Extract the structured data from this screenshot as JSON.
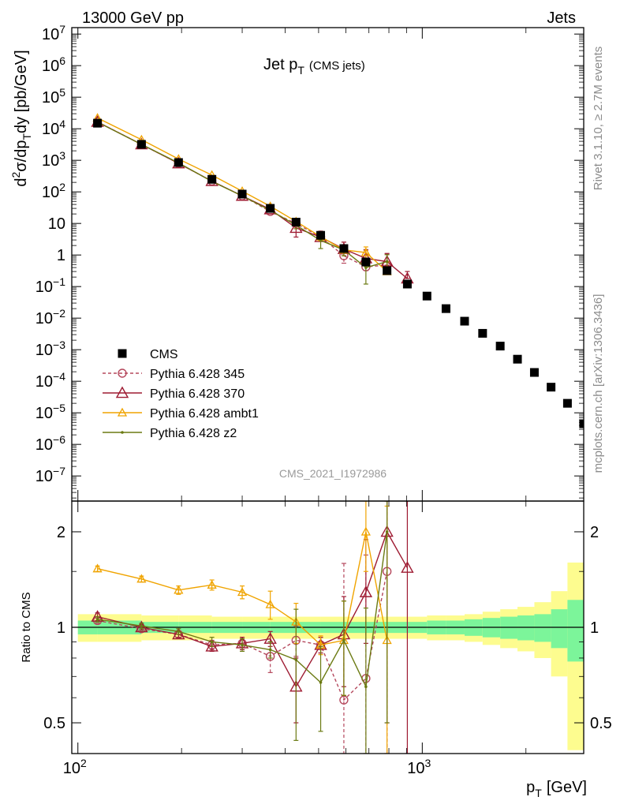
{
  "header": {
    "left": "13000 GeV pp",
    "right": "Jets"
  },
  "plot_title": {
    "main": "Jet p",
    "sub": "T",
    "suffix": "(CMS jets)"
  },
  "watermark": "CMS_2021_I1972986",
  "side_labels": {
    "top": "Rivet 3.1.10, ≥ 2.7M events",
    "bottom": "mcplots.cern.ch [arXiv:1306.3436]"
  },
  "axes": {
    "upper_ylabel": {
      "part1": "d",
      "sup1": "2",
      "part2": "σ/dp",
      "sub1": "T",
      "part3": "dy [pb/GeV]"
    },
    "lower_ylabel": "Ratio to CMS",
    "xlabel": {
      "main": "p",
      "sub": "T",
      "unit": "[GeV]"
    }
  },
  "colors": {
    "data": "#000000",
    "p345": "#b5485d",
    "p370": "#9e1b32",
    "ambt1": "#f0a400",
    "z2": "#6b7a12",
    "band_inner": "#7cf59a",
    "band_outer": "#fdfc8f"
  },
  "chart_data": {
    "type": "scatter",
    "x_scale": "log",
    "xlim": [
      96,
      900
    ],
    "x_ticks": [
      {
        "value": 100,
        "label": "10",
        "sup": "2"
      },
      {
        "value": 1000,
        "label": "10",
        "sup": "3"
      }
    ],
    "upper": {
      "y_scale": "log",
      "ylim": [
        1.6e-08,
        16000000.0
      ],
      "y_ticks": [
        {
          "value": 10000000.0,
          "label": "10",
          "sup": "7"
        },
        {
          "value": 1000000.0,
          "label": "10",
          "sup": "6"
        },
        {
          "value": 100000.0,
          "label": "10",
          "sup": "5"
        },
        {
          "value": 10000.0,
          "label": "10",
          "sup": "4"
        },
        {
          "value": 1000.0,
          "label": "10",
          "sup": "3"
        },
        {
          "value": 100.0,
          "label": "10",
          "sup": "2"
        },
        {
          "value": 10,
          "label": "10",
          "sup": ""
        },
        {
          "value": 1,
          "label": "1",
          "sup": ""
        },
        {
          "value": 0.1,
          "label": "10",
          "sup": "−1"
        },
        {
          "value": 0.01,
          "label": "10",
          "sup": "−2"
        },
        {
          "value": 0.001,
          "label": "10",
          "sup": "−3"
        },
        {
          "value": 0.0001,
          "label": "10",
          "sup": "−4"
        },
        {
          "value": 1e-05,
          "label": "10",
          "sup": "−5"
        },
        {
          "value": 1e-06,
          "label": "10",
          "sup": "−6"
        },
        {
          "value": 1e-07,
          "label": "10",
          "sup": "−7"
        }
      ],
      "data": {
        "name": "CMS",
        "x": [
          114,
          153,
          196,
          245,
          300,
          362,
          430,
          507,
          592,
          686,
          790,
          905,
          1032,
          1172,
          1327,
          1497,
          1684,
          1890,
          2116,
          2366,
          2640,
          2941
        ],
        "y": [
          15000,
          3200,
          850,
          250,
          85,
          30,
          11,
          4.2,
          1.6,
          0.6,
          0.32,
          0.12,
          0.05,
          0.02,
          0.008,
          0.0033,
          0.0013,
          0.0005,
          0.00019,
          6.5e-05,
          2e-05,
          4.5e-06
        ]
      },
      "series": [
        {
          "name": "Pythia 6.428 345",
          "key": "p345",
          "x": [
            114,
            153,
            196,
            245,
            300,
            362,
            430,
            507,
            592,
            686,
            790
          ],
          "y": [
            16500,
            3200,
            800,
            220,
            75,
            24,
            10,
            3.7,
            0.95,
            0.42,
            0.48
          ],
          "err_lo": [
            0.001,
            0.001,
            0.001,
            0.001,
            0.001,
            0.001,
            0.001,
            0.001,
            0.4,
            0.1,
            0.0001
          ],
          "err_hi": [
            0.001,
            0.001,
            0.001,
            0.001,
            0.001,
            0.001,
            0.001,
            0.001,
            1.6,
            1.0,
            0.6
          ]
        },
        {
          "name": "Pythia 6.428 370",
          "key": "p370",
          "x": [
            114,
            153,
            196,
            245,
            300,
            362,
            430,
            507,
            592,
            686,
            790,
            905
          ],
          "y": [
            16500,
            3200,
            800,
            220,
            75,
            28,
            7.2,
            3.7,
            1.55,
            0.78,
            0.62,
            0.18
          ],
          "err_lo": [
            0.001,
            0.001,
            0.001,
            0.001,
            0.001,
            0.001,
            3.5,
            1.0,
            0.6,
            0.2,
            0.25,
            0.0001
          ],
          "err_hi": [
            0.001,
            0.001,
            0.001,
            0.001,
            0.001,
            0.001,
            4.0,
            2.0,
            1.0,
            0.7,
            0.5,
            0.12
          ]
        },
        {
          "name": "Pythia 6.428 ambt1",
          "key": "ambt1",
          "x": [
            114,
            153,
            196,
            245,
            300,
            362,
            430,
            507,
            592,
            686,
            790
          ],
          "y": [
            22000,
            4500,
            1100,
            340,
            105,
            35,
            11.5,
            3.8,
            1.45,
            1.2,
            0.3
          ],
          "err_lo": [
            0.001,
            0.001,
            0.001,
            0.001,
            0.001,
            5,
            3,
            1,
            0.5,
            0.4,
            0.0001
          ],
          "err_hi": [
            0.001,
            0.001,
            0.001,
            0.001,
            0.001,
            5,
            3,
            1,
            0.5,
            0.6,
            0.3
          ]
        },
        {
          "name": "Pythia 6.428 z2",
          "key": "z2",
          "x": [
            114,
            153,
            196,
            245,
            300,
            362,
            430,
            507,
            592,
            686,
            790
          ],
          "y": [
            16200,
            3200,
            830,
            215,
            75,
            26,
            8.8,
            2.9,
            1.45,
            0.4,
            0.62
          ],
          "err_lo": [
            0.001,
            0.001,
            0.001,
            0.001,
            0.001,
            0.001,
            2,
            1.3,
            0.5,
            0.28,
            0.3
          ],
          "err_hi": [
            0.001,
            0.001,
            0.001,
            0.001,
            0.001,
            0.001,
            2,
            1.3,
            0.6,
            0.4,
            0.4
          ]
        }
      ]
    },
    "lower": {
      "y_scale": "log",
      "ylim": [
        0.4,
        2.5
      ],
      "reference_line": 1,
      "y_ticks": [
        {
          "value": 0.5,
          "label": "0.5"
        },
        {
          "value": 1,
          "label": "1"
        },
        {
          "value": 2,
          "label": "2"
        }
      ],
      "band_edges": [
        100,
        114,
        153,
        196,
        245,
        300,
        362,
        430,
        507,
        592,
        686,
        790,
        905,
        1032,
        1172,
        1327,
        1497,
        1684,
        1890,
        2116,
        2366,
        2640,
        2941
      ],
      "band_inner": [
        0.05,
        0.05,
        0.04,
        0.04,
        0.04,
        0.04,
        0.04,
        0.04,
        0.04,
        0.04,
        0.04,
        0.04,
        0.04,
        0.05,
        0.05,
        0.06,
        0.07,
        0.08,
        0.09,
        0.1,
        0.14,
        0.22
      ],
      "band_outer": [
        0.1,
        0.1,
        0.09,
        0.09,
        0.08,
        0.08,
        0.08,
        0.08,
        0.08,
        0.08,
        0.08,
        0.08,
        0.08,
        0.09,
        0.09,
        0.1,
        0.12,
        0.14,
        0.16,
        0.2,
        0.3,
        0.6
      ],
      "series": [
        {
          "key": "p345",
          "x": [
            114,
            153,
            196,
            245,
            300,
            362,
            430,
            507,
            592,
            686,
            790
          ],
          "y": [
            1.05,
            0.99,
            0.95,
            0.88,
            0.89,
            0.81,
            0.91,
            0.88,
            0.59,
            0.69,
            1.5
          ],
          "err_lo": [
            0.02,
            0.02,
            0.02,
            0.03,
            0.04,
            0.09,
            0.1,
            0.05,
            0.3,
            0.4,
            1.5
          ],
          "err_hi": [
            0.02,
            0.02,
            0.02,
            0.03,
            0.04,
            0.09,
            0.1,
            0.05,
            1.0,
            1.0,
            1.5
          ]
        },
        {
          "key": "p370",
          "x": [
            114,
            153,
            196,
            245,
            300,
            362,
            430,
            507,
            592,
            686,
            790,
            905
          ],
          "y": [
            1.08,
            1.0,
            0.95,
            0.87,
            0.89,
            0.92,
            0.65,
            0.88,
            0.95,
            1.29,
            2.0,
            1.54
          ],
          "err_lo": [
            0.03,
            0.02,
            0.02,
            0.03,
            0.04,
            0.05,
            0.15,
            0.05,
            0.3,
            0.4,
            1.5,
            1.54
          ],
          "err_hi": [
            0.03,
            0.02,
            0.02,
            0.03,
            0.04,
            0.05,
            0.15,
            0.05,
            0.3,
            0.6,
            1.5,
            1.5
          ]
        },
        {
          "key": "ambt1",
          "x": [
            114,
            153,
            196,
            245,
            300,
            362,
            430,
            507,
            592,
            686,
            790
          ],
          "y": [
            1.53,
            1.42,
            1.31,
            1.36,
            1.29,
            1.18,
            1.04,
            0.88,
            0.91,
            2.0,
            0.91
          ],
          "err_lo": [
            0.03,
            0.03,
            0.04,
            0.05,
            0.06,
            0.12,
            0.15,
            0.06,
            0.3,
            0.5,
            0.91
          ],
          "err_hi": [
            0.03,
            0.03,
            0.04,
            0.05,
            0.06,
            0.12,
            0.15,
            0.06,
            0.3,
            0.5,
            1.5
          ]
        },
        {
          "key": "z2",
          "x": [
            114,
            153,
            196,
            245,
            300,
            362,
            430,
            507,
            592,
            686,
            790
          ],
          "y": [
            1.06,
            1.01,
            0.97,
            0.9,
            0.88,
            0.85,
            0.79,
            0.67,
            0.91,
            0.65,
            2.0
          ],
          "err_lo": [
            0.02,
            0.02,
            0.02,
            0.03,
            0.04,
            0.05,
            0.35,
            0.2,
            0.3,
            0.5,
            1.5
          ],
          "err_hi": [
            0.02,
            0.02,
            0.02,
            0.03,
            0.04,
            0.05,
            0.35,
            0.2,
            0.3,
            0.5,
            1.5
          ]
        }
      ]
    },
    "legend": {
      "placement": "lower-left",
      "entries": [
        {
          "key": "data",
          "label": "CMS"
        },
        {
          "key": "p345",
          "label": "Pythia 6.428 345"
        },
        {
          "key": "p370",
          "label": "Pythia 6.428 370"
        },
        {
          "key": "ambt1",
          "label": "Pythia 6.428 ambt1"
        },
        {
          "key": "z2",
          "label": "Pythia 6.428 z2"
        }
      ]
    }
  }
}
